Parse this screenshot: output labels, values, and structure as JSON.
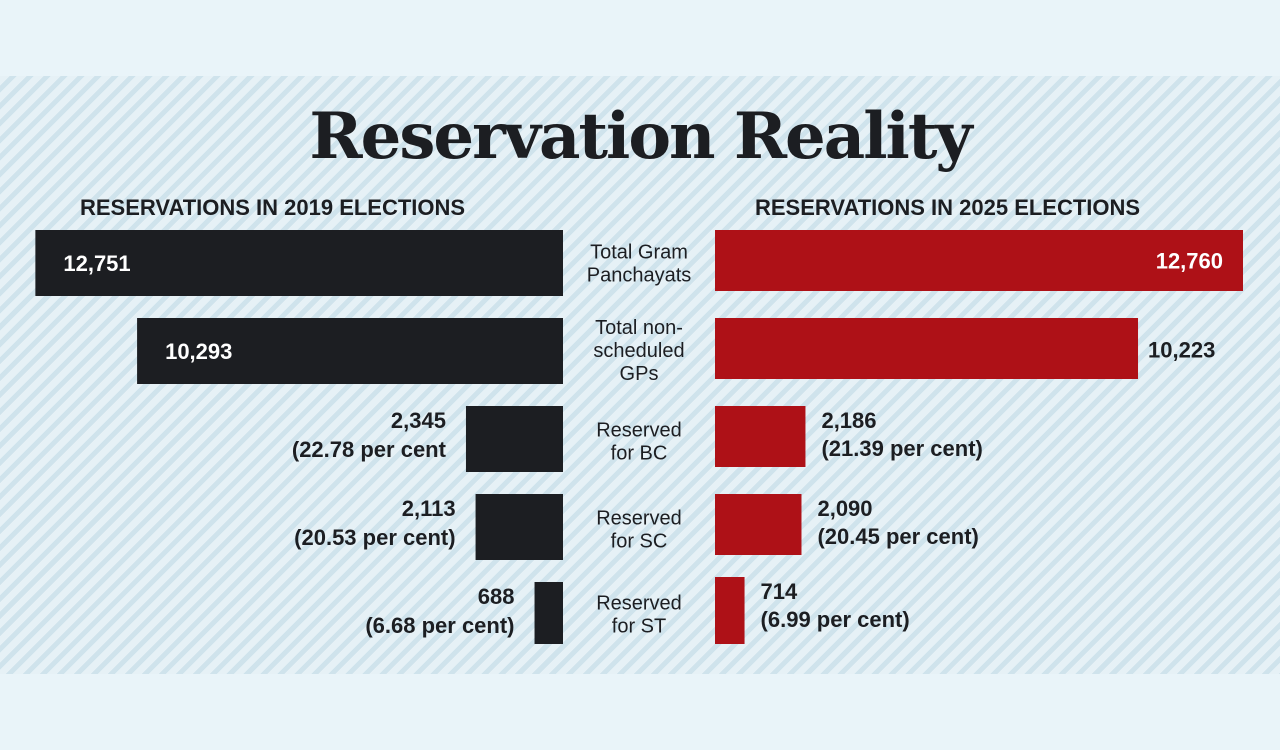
{
  "title": "Reservation Reality",
  "subtitle_left": "RESERVATIONS IN 2019 ELECTIONS",
  "subtitle_right": "RESERVATIONS IN 2025 ELECTIONS",
  "colors": {
    "series_2019": "#1c1e22",
    "series_2025": "#ae1117",
    "text": "#1c1e22",
    "background": "#e9f4f9",
    "stripe": "#cfe3ec"
  },
  "chart_data": {
    "type": "bar",
    "orientation": "horizontal",
    "layout": "mirrored",
    "categories": [
      [
        "Total Gram",
        "Panchayats"
      ],
      [
        "Total non-",
        "scheduled",
        "GPs"
      ],
      [
        "Reserved",
        "for BC"
      ],
      [
        "Reserved",
        "for SC"
      ],
      [
        "Reserved",
        "for ST"
      ]
    ],
    "series": [
      {
        "name": "RESERVATIONS IN 2019 ELECTIONS",
        "values": [
          12751,
          10293,
          2345,
          2113,
          688
        ],
        "labels": [
          [
            "12,751"
          ],
          [
            "10,293"
          ],
          [
            "2,345",
            "(22.78 per cent"
          ],
          [
            "2,113",
            "(20.53 per cent)"
          ],
          [
            "688",
            "(6.68 per cent)"
          ]
        ]
      },
      {
        "name": "RESERVATIONS IN 2025 ELECTIONS",
        "values": [
          12760,
          10223,
          2186,
          2090,
          714
        ],
        "labels": [
          [
            "12,760"
          ],
          [
            "10,223"
          ],
          [
            "2,186",
            "(21.39 per cent)"
          ],
          [
            "2,090",
            "(20.45 per cent)"
          ],
          [
            "714",
            "(6.99 per cent)"
          ]
        ]
      }
    ]
  }
}
